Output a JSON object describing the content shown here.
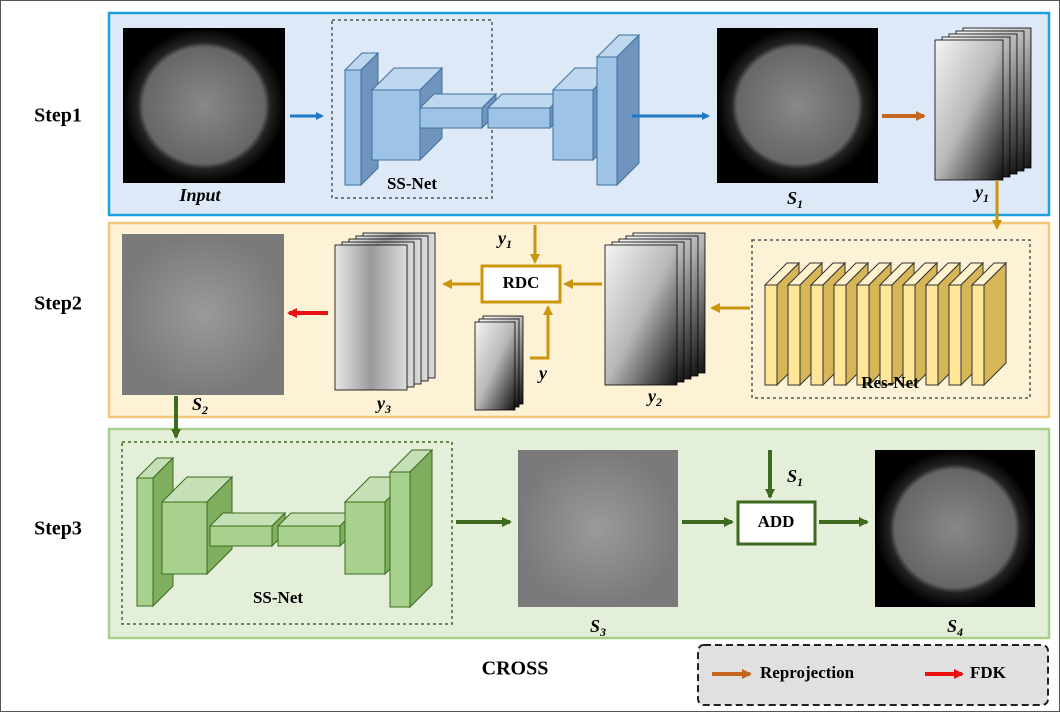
{
  "title": "CROSS",
  "steps": [
    "Step1",
    "Step2",
    "Step3"
  ],
  "step1": {
    "input": "Input",
    "net": "SS-Net",
    "output": {
      "main": "S",
      "sub": "1"
    },
    "projection": {
      "main": "y",
      "sub": "1"
    }
  },
  "step2": {
    "net": "Res-Net",
    "net_output": {
      "main": "y",
      "sub": "2"
    },
    "rdc": "RDC",
    "rdc_in_top": {
      "main": "y",
      "sub": "1"
    },
    "rdc_in_bottom": "y",
    "rdc_output": {
      "main": "y",
      "sub": "3"
    },
    "output": {
      "main": "S",
      "sub": "2"
    }
  },
  "step3": {
    "net": "SS-Net",
    "net_output": {
      "main": "S",
      "sub": "3"
    },
    "add": "ADD",
    "add_in": {
      "main": "S",
      "sub": "1"
    },
    "output": {
      "main": "S",
      "sub": "4"
    }
  },
  "legend": [
    "Reprojection",
    "FDK"
  ]
}
